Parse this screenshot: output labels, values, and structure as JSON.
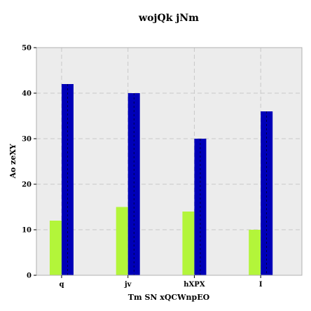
{
  "chart_data": {
    "type": "bar",
    "title": "wojQk jNm",
    "xlabel": "Tm SN xQCWnpEO",
    "ylabel": "Ao zeXY",
    "categories": [
      "q",
      "jv",
      "hXPX",
      "I"
    ],
    "series": [
      {
        "values": [
          12,
          15,
          14,
          10
        ],
        "color": "#b3f53a"
      },
      {
        "values": [
          42,
          40,
          30,
          36
        ],
        "color": "#0000b8"
      }
    ],
    "ylim": [
      0,
      50
    ],
    "yticks": [
      0,
      10,
      20,
      30,
      40,
      50
    ],
    "grid": true,
    "background": "#ececec"
  }
}
